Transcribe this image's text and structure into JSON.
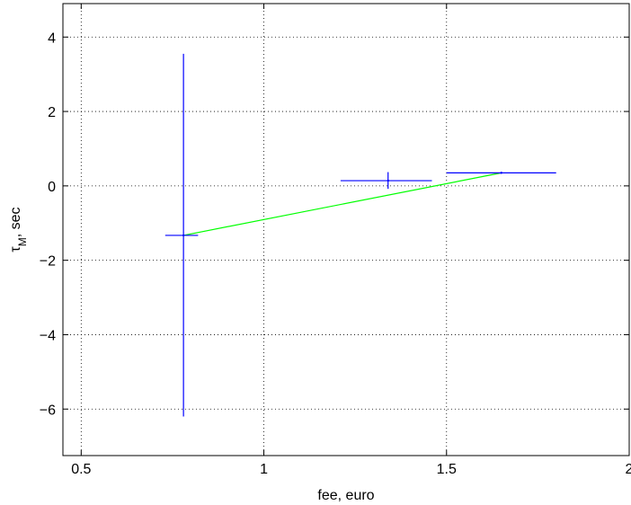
{
  "chart_data": {
    "type": "line",
    "xlabel": "fee, euro",
    "ylabel_main": "τ",
    "ylabel_sub": "M",
    "ylabel_rest": ", sec",
    "xlim": [
      0.45,
      2.0
    ],
    "ylim": [
      -7.25,
      4.9
    ],
    "xticks": [
      0.5,
      1,
      1.5,
      2
    ],
    "xtick_labels": [
      "0.5",
      "1",
      "1.5",
      "2"
    ],
    "yticks": [
      4,
      2,
      0,
      -2,
      -4,
      -6
    ],
    "ytick_labels": [
      "4",
      "2",
      "0",
      "−2",
      "−4",
      "−6"
    ],
    "grid": true,
    "fit_line": {
      "color": "#00ff00",
      "x": [
        0.78,
        1.65
      ],
      "y": [
        -1.33,
        0.35
      ]
    },
    "error_crosses": {
      "color": "#0000ff",
      "points": [
        {
          "x": 0.78,
          "y": -1.33,
          "x_low": 0.73,
          "x_high": 0.82,
          "y_low": -6.2,
          "y_high": 3.55
        },
        {
          "x": 1.34,
          "y": 0.14,
          "x_low": 1.21,
          "x_high": 1.46,
          "y_low": -0.08,
          "y_high": 0.37
        },
        {
          "x": 1.65,
          "y": 0.35,
          "x_low": 1.5,
          "x_high": 1.8,
          "y_low": 0.34,
          "y_high": 0.36
        }
      ]
    }
  }
}
